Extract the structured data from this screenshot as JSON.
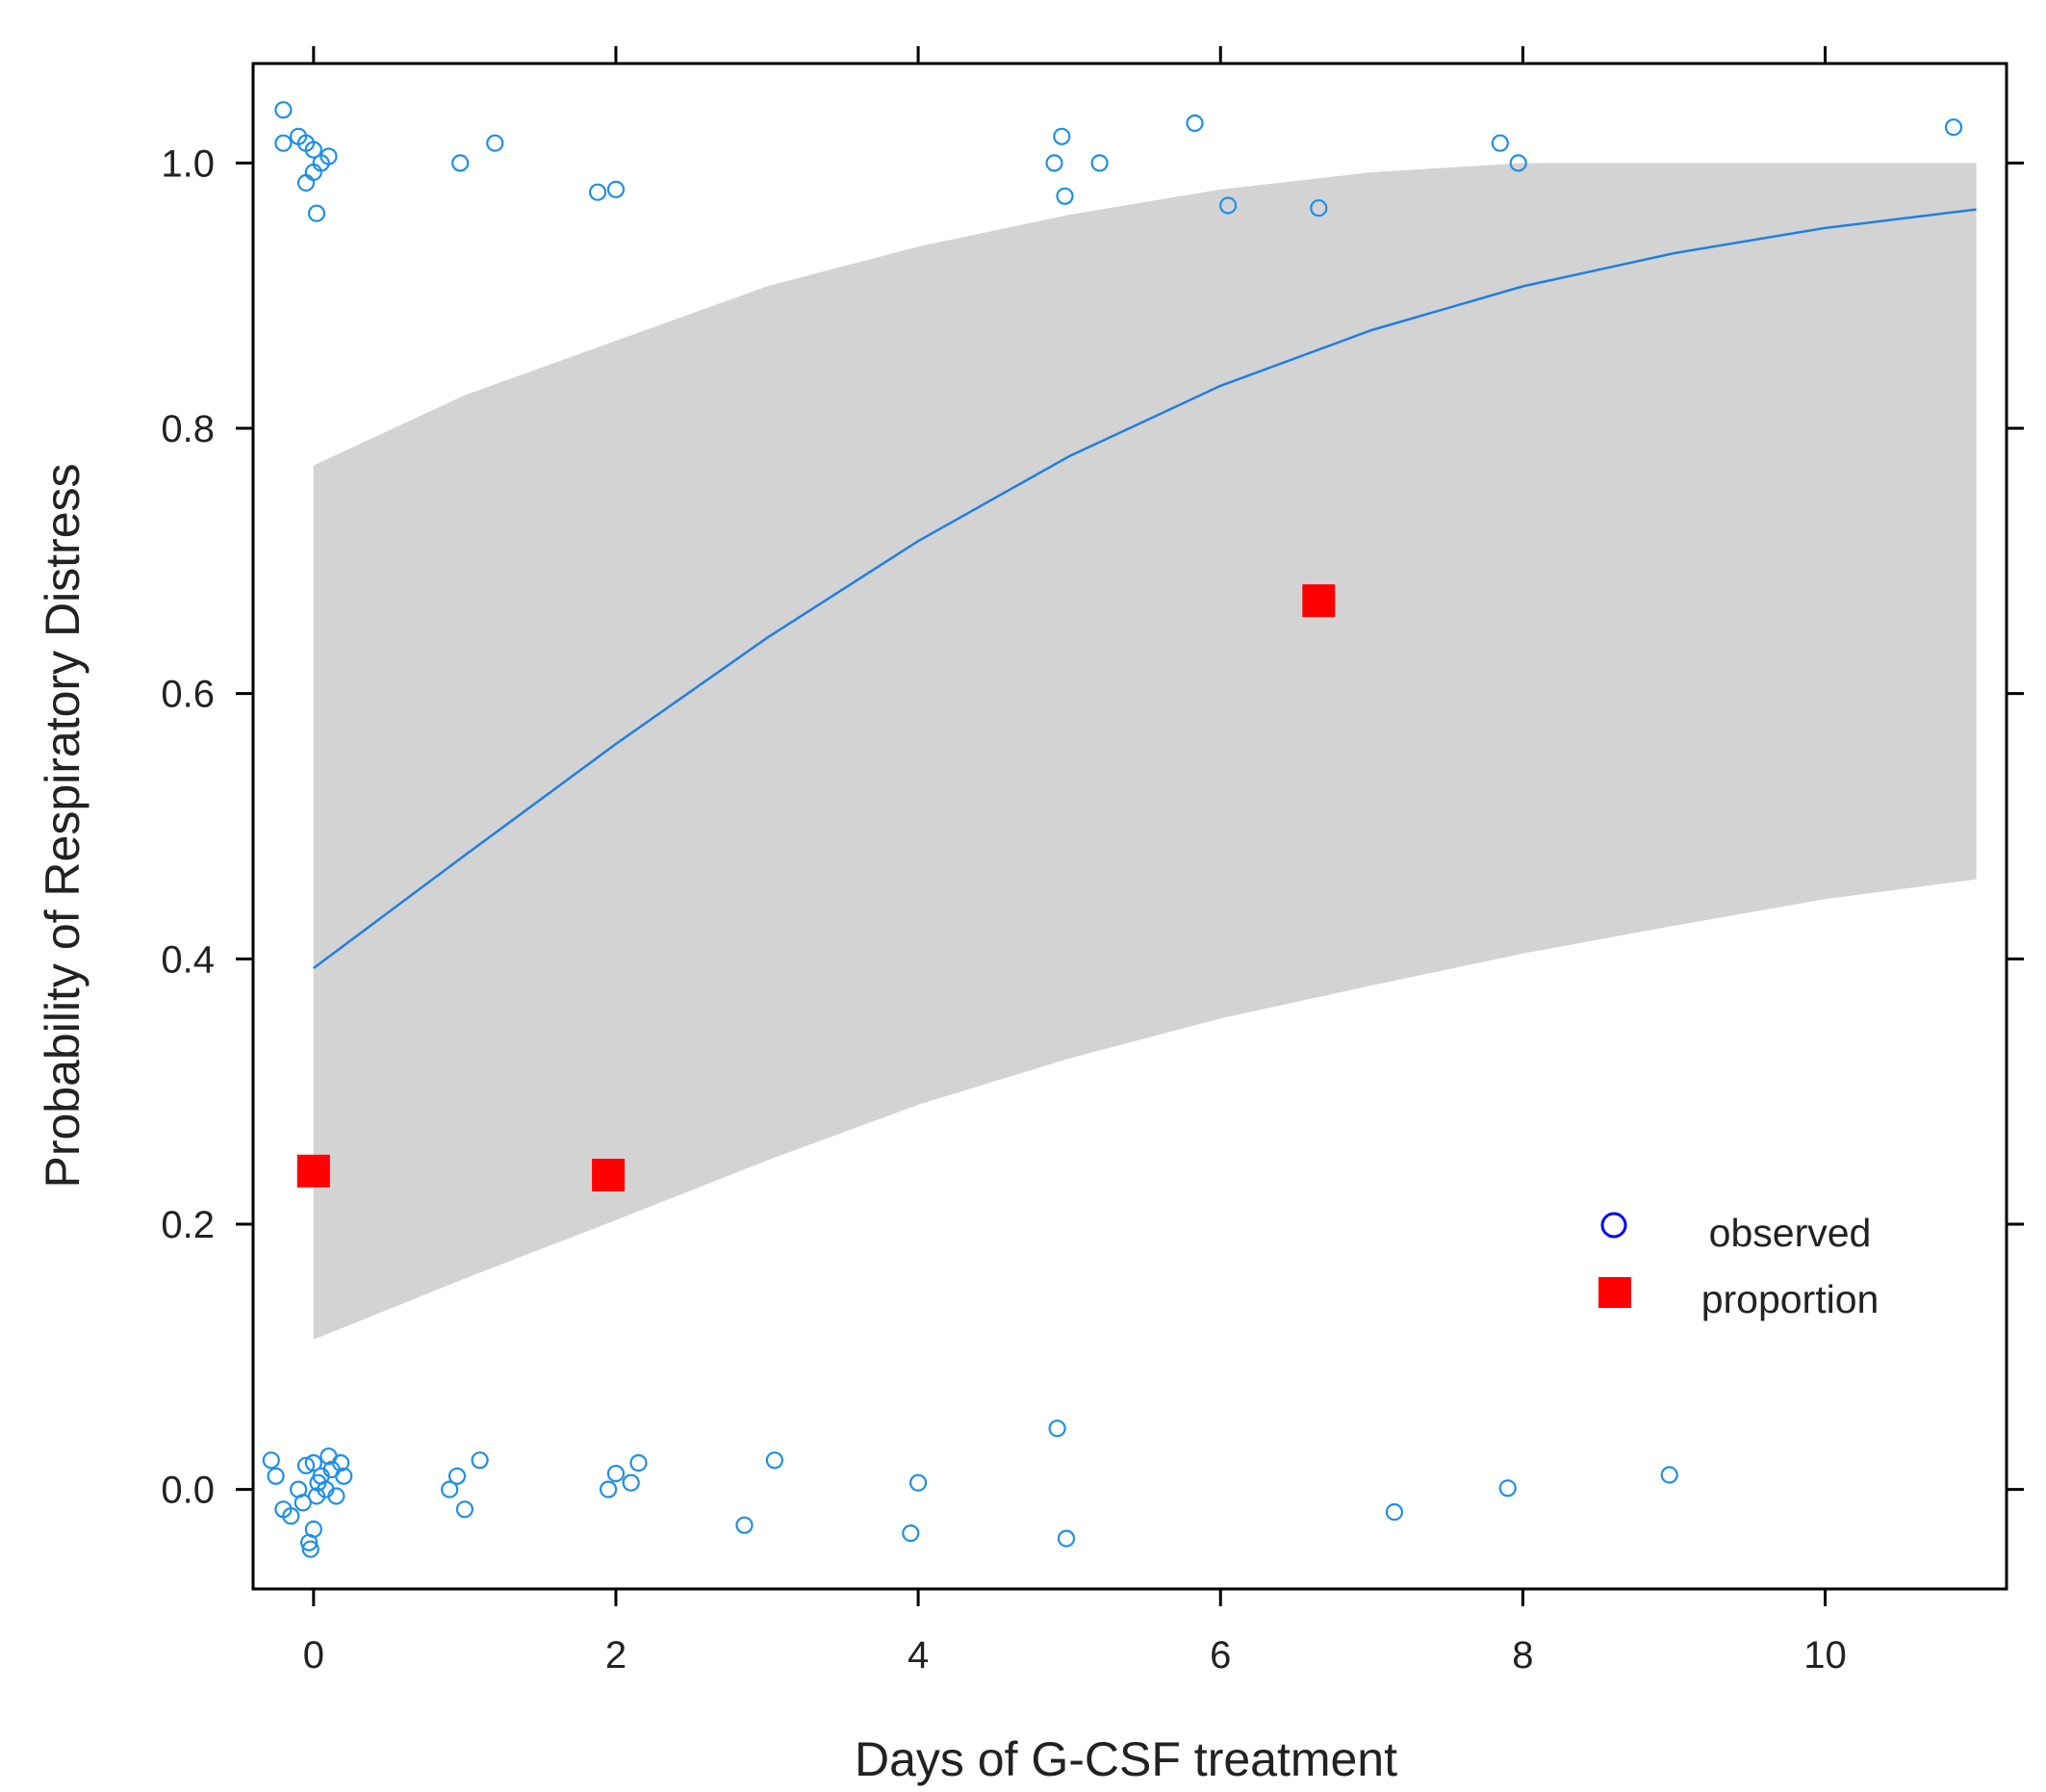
{
  "chart_data": {
    "type": "scatter",
    "xlabel": "Days of G-CSF treatment",
    "ylabel": "Probability of Respiratory Distress",
    "xlim": [
      -0.4,
      11.2
    ],
    "ylim": [
      -0.075,
      1.075
    ],
    "xticks": [
      0,
      2,
      4,
      6,
      8,
      10
    ],
    "xtick_labels": [
      "0",
      "2",
      "4",
      "6",
      "8",
      "10"
    ],
    "yticks": [
      0.0,
      0.2,
      0.4,
      0.6,
      0.8,
      1.0
    ],
    "ytick_labels": [
      "0.0",
      "0.2",
      "0.4",
      "0.6",
      "0.8",
      "1.0"
    ],
    "grid": false,
    "colors": {
      "fit": "#1f7fe0",
      "band": "#d3d3d3",
      "observed": "#1f8fe8",
      "proportion": "#ff0000",
      "legend_observed": "#0000ff",
      "frame": "#000000"
    },
    "fit": {
      "name": "fitted probability",
      "x": [
        0,
        1,
        2,
        3,
        4,
        5,
        6,
        7,
        8,
        9,
        10,
        11
      ],
      "y": [
        0.393,
        0.478,
        0.562,
        0.642,
        0.715,
        0.779,
        0.832,
        0.874,
        0.907,
        0.932,
        0.951,
        0.965
      ]
    },
    "ci_band": {
      "name": "confidence band",
      "x": [
        0,
        1,
        2,
        3,
        4,
        5,
        6,
        7,
        8,
        9,
        10,
        11
      ],
      "lower": [
        0.113,
        0.159,
        0.203,
        0.248,
        0.29,
        0.325,
        0.355,
        0.38,
        0.404,
        0.425,
        0.445,
        0.46
      ],
      "upper": [
        0.772,
        0.825,
        0.866,
        0.907,
        0.937,
        0.961,
        0.98,
        0.993,
        1.0,
        1.0,
        1.0,
        1.0
      ]
    },
    "observed": {
      "name": "observed",
      "points": [
        [
          -0.2,
          1.04
        ],
        [
          -0.2,
          1.015
        ],
        [
          -0.1,
          1.02
        ],
        [
          -0.05,
          1.015
        ],
        [
          0.0,
          1.01
        ],
        [
          0.05,
          1.0
        ],
        [
          0.1,
          1.005
        ],
        [
          -0.05,
          0.985
        ],
        [
          0.0,
          0.993
        ],
        [
          0.02,
          0.962
        ],
        [
          0.97,
          1.0
        ],
        [
          1.2,
          1.015
        ],
        [
          1.88,
          0.978
        ],
        [
          2.0,
          0.98
        ],
        [
          4.9,
          1.0
        ],
        [
          4.95,
          1.02
        ],
        [
          4.97,
          0.975
        ],
        [
          5.2,
          1.0
        ],
        [
          5.83,
          1.03
        ],
        [
          6.05,
          0.968
        ],
        [
          6.65,
          0.966
        ],
        [
          7.85,
          1.015
        ],
        [
          7.97,
          1.0
        ],
        [
          10.85,
          1.027
        ],
        [
          -0.28,
          0.022
        ],
        [
          -0.25,
          0.01
        ],
        [
          -0.2,
          -0.015
        ],
        [
          -0.15,
          -0.02
        ],
        [
          -0.1,
          0.0
        ],
        [
          -0.07,
          -0.01
        ],
        [
          -0.05,
          0.018
        ],
        [
          -0.03,
          -0.04
        ],
        [
          0.0,
          0.02
        ],
        [
          0.02,
          -0.005
        ],
        [
          0.05,
          0.01
        ],
        [
          0.08,
          0.0
        ],
        [
          0.1,
          0.025
        ],
        [
          0.12,
          0.015
        ],
        [
          0.15,
          -0.005
        ],
        [
          0.18,
          0.02
        ],
        [
          0.2,
          0.01
        ],
        [
          0.0,
          -0.03
        ],
        [
          -0.02,
          -0.045
        ],
        [
          0.03,
          0.005
        ],
        [
          0.9,
          0.0
        ],
        [
          0.95,
          0.01
        ],
        [
          1.0,
          -0.015
        ],
        [
          1.1,
          0.022
        ],
        [
          1.95,
          0.0
        ],
        [
          2.0,
          0.012
        ],
        [
          2.1,
          0.005
        ],
        [
          2.15,
          0.02
        ],
        [
          2.85,
          -0.027
        ],
        [
          3.05,
          0.022
        ],
        [
          3.95,
          -0.033
        ],
        [
          4.0,
          0.005
        ],
        [
          4.92,
          0.046
        ],
        [
          4.98,
          -0.037
        ],
        [
          7.15,
          -0.017
        ],
        [
          7.9,
          0.001
        ],
        [
          8.97,
          0.011
        ]
      ]
    },
    "proportion": {
      "name": "proportion",
      "points": [
        [
          0.0,
          0.24
        ],
        [
          1.95,
          0.237
        ],
        [
          6.65,
          0.67
        ]
      ]
    },
    "legend": {
      "position": "bottom-right",
      "items": [
        {
          "label": "observed",
          "marker": "open-circle"
        },
        {
          "label": "proportion",
          "marker": "filled-square"
        }
      ]
    }
  }
}
